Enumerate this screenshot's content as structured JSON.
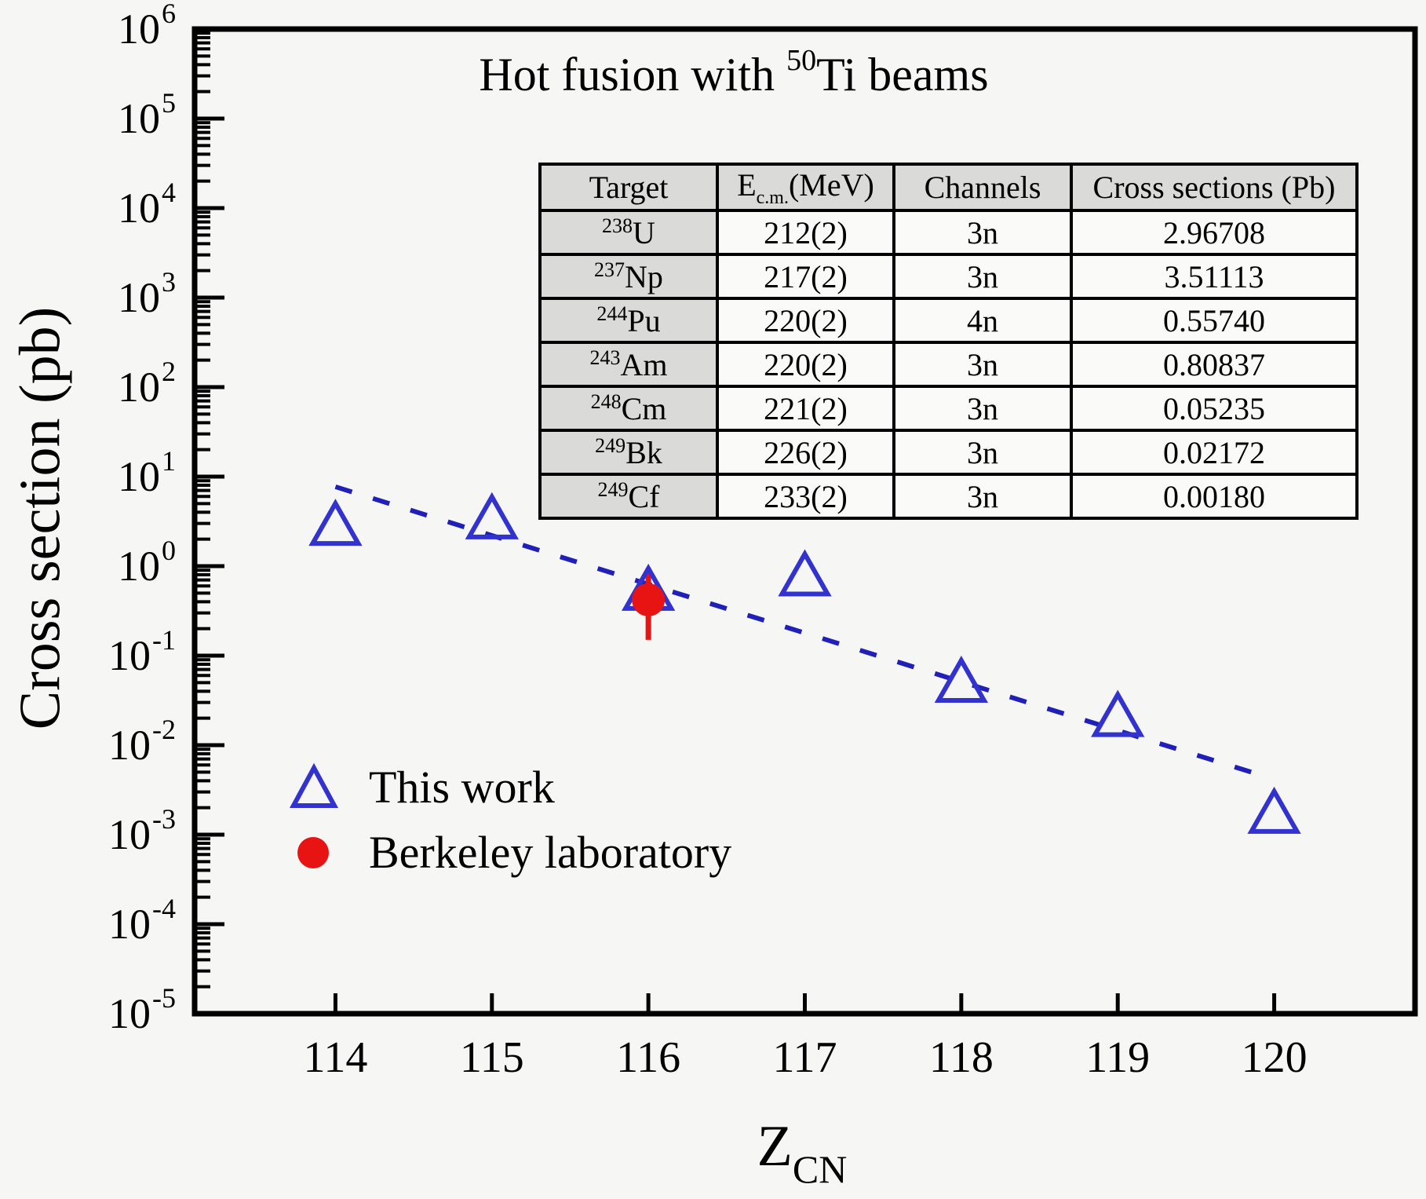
{
  "title": {
    "prefix": "Hot fusion with ",
    "beam_mass": "50",
    "beam_suffix": "Ti beams"
  },
  "axes": {
    "x": {
      "label_main": "Z",
      "label_sub": "CN",
      "tick_labels": [
        "114",
        "115",
        "116",
        "117",
        "118",
        "119",
        "120"
      ]
    },
    "y": {
      "label": "Cross section (pb)",
      "tick_base": "10",
      "tick_exponents": [
        "6",
        "5",
        "4",
        "3",
        "2",
        "1",
        "0",
        "-1",
        "-2",
        "-3",
        "-4",
        "-5"
      ]
    }
  },
  "table": {
    "columns": {
      "target": "Target",
      "ecm_main": "E",
      "ecm_sub": "c.m.",
      "ecm_suffix": "(MeV)",
      "channels": "Channels",
      "cross_sections": "Cross sections (Pb)"
    },
    "rows": [
      {
        "mass": "238",
        "element": "U",
        "ecm": "212(2)",
        "channel": "3n",
        "value": "2.96708"
      },
      {
        "mass": "237",
        "element": "Np",
        "ecm": "217(2)",
        "channel": "3n",
        "value": "3.51113"
      },
      {
        "mass": "244",
        "element": "Pu",
        "ecm": "220(2)",
        "channel": "4n",
        "value": "0.55740"
      },
      {
        "mass": "243",
        "element": "Am",
        "ecm": "220(2)",
        "channel": "3n",
        "value": "0.80837"
      },
      {
        "mass": "248",
        "element": "Cm",
        "ecm": "221(2)",
        "channel": "3n",
        "value": "0.05235"
      },
      {
        "mass": "249",
        "element": "Bk",
        "ecm": "226(2)",
        "channel": "3n",
        "value": "0.02172"
      },
      {
        "mass": "249",
        "element": "Cf",
        "ecm": "233(2)",
        "channel": "3n",
        "value": "0.00180"
      }
    ]
  },
  "legend": [
    {
      "marker": "open-triangle",
      "color": "#3232cf",
      "label": "This work"
    },
    {
      "marker": "filled-circle",
      "color": "#e81414",
      "label": "Berkeley laboratory"
    }
  ],
  "colors": {
    "this_work": "#3232cf",
    "berkeley": "#e81414",
    "fit_line": "#2020b8",
    "axis": "#000000",
    "table_header_bg": "#dadad8",
    "background": "#f6f6f4"
  },
  "chart_data": {
    "type": "scatter",
    "title": "Hot fusion with 50Ti beams",
    "xlabel": "Z_CN",
    "ylabel": "Cross section (pb)",
    "x_ticks": [
      114,
      115,
      116,
      117,
      118,
      119,
      120
    ],
    "x_range": [
      113.1,
      120.9
    ],
    "y_scale": "log",
    "y_range": [
      1e-05,
      1000000.0
    ],
    "grid": false,
    "legend_position": "lower-left",
    "series": [
      {
        "name": "This work",
        "marker": "open-triangle",
        "color": "#3232cf",
        "points": [
          {
            "x": 114,
            "y": 2.96708
          },
          {
            "x": 115,
            "y": 3.51113
          },
          {
            "x": 116,
            "y": 0.5574
          },
          {
            "x": 117,
            "y": 0.80837
          },
          {
            "x": 118,
            "y": 0.05235
          },
          {
            "x": 119,
            "y": 0.02172
          },
          {
            "x": 120,
            "y": 0.0018
          }
        ]
      },
      {
        "name": "Berkeley laboratory",
        "marker": "filled-circle",
        "color": "#e81414",
        "points": [
          {
            "x": 116,
            "y": 0.42,
            "y_err_low": 0.15,
            "y_err_high": 0.95
          }
        ]
      },
      {
        "name": "systematics-trend",
        "style": "dashed",
        "color": "#2020b8",
        "line": {
          "x1": 114.0,
          "y1": 7.7,
          "x2": 119.92,
          "y2": 0.0046
        }
      }
    ]
  }
}
